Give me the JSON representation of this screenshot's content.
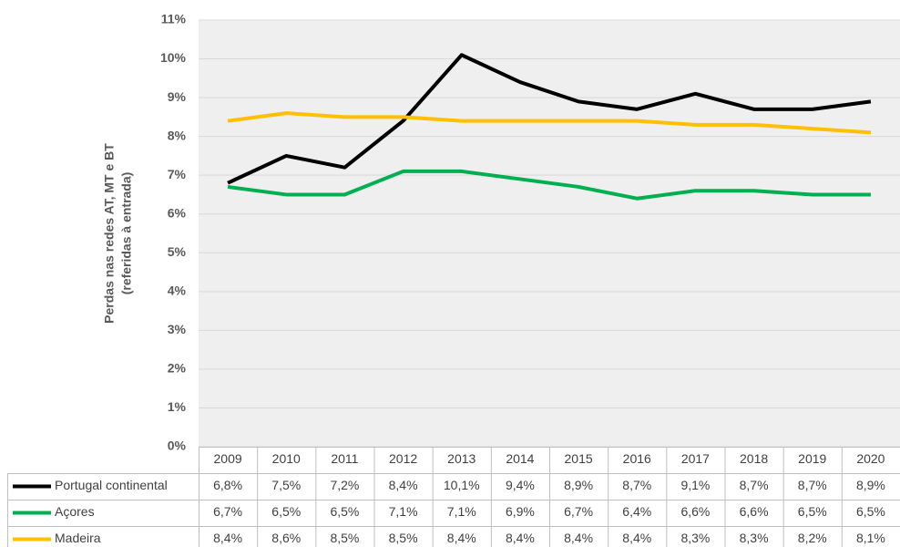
{
  "chart_data": {
    "type": "line",
    "ylabel": [
      "Perdas nas redes AT, MT e BT",
      "(referidas à entrada)"
    ],
    "categories": [
      "2009",
      "2010",
      "2011",
      "2012",
      "2013",
      "2014",
      "2015",
      "2016",
      "2017",
      "2018",
      "2019",
      "2020"
    ],
    "series": [
      {
        "name": "Portugal continental",
        "color": "#000000",
        "values": [
          6.8,
          7.5,
          7.2,
          8.4,
          10.1,
          9.4,
          8.9,
          8.7,
          9.1,
          8.7,
          8.7,
          8.9
        ],
        "value_labels": [
          "6,8%",
          "7,5%",
          "7,2%",
          "8,4%",
          "10,1%",
          "9,4%",
          "8,9%",
          "8,7%",
          "9,1%",
          "8,7%",
          "8,7%",
          "8,9%"
        ]
      },
      {
        "name": "Açores",
        "color": "#00b050",
        "values": [
          6.7,
          6.5,
          6.5,
          7.1,
          7.1,
          6.9,
          6.7,
          6.4,
          6.6,
          6.6,
          6.5,
          6.5
        ],
        "value_labels": [
          "6,7%",
          "6,5%",
          "6,5%",
          "7,1%",
          "7,1%",
          "6,9%",
          "6,7%",
          "6,4%",
          "6,6%",
          "6,6%",
          "6,5%",
          "6,5%"
        ]
      },
      {
        "name": "Madeira",
        "color": "#ffc000",
        "values": [
          8.4,
          8.6,
          8.5,
          8.5,
          8.4,
          8.4,
          8.4,
          8.4,
          8.3,
          8.3,
          8.2,
          8.1
        ],
        "value_labels": [
          "8,4%",
          "8,6%",
          "8,5%",
          "8,5%",
          "8,4%",
          "8,4%",
          "8,4%",
          "8,4%",
          "8,3%",
          "8,3%",
          "8,2%",
          "8,1%"
        ]
      }
    ],
    "ylim": [
      0,
      11
    ],
    "yticks": [
      {
        "value": 0,
        "label": "0%"
      },
      {
        "value": 1,
        "label": "1%"
      },
      {
        "value": 2,
        "label": "2%"
      },
      {
        "value": 3,
        "label": "3%"
      },
      {
        "value": 4,
        "label": "4%"
      },
      {
        "value": 5,
        "label": "5%"
      },
      {
        "value": 6,
        "label": "6%"
      },
      {
        "value": 7,
        "label": "7%"
      },
      {
        "value": 8,
        "label": "8%"
      },
      {
        "value": 9,
        "label": "9%"
      },
      {
        "value": 10,
        "label": "10%"
      },
      {
        "value": 11,
        "label": "11%"
      }
    ],
    "grid": true
  }
}
